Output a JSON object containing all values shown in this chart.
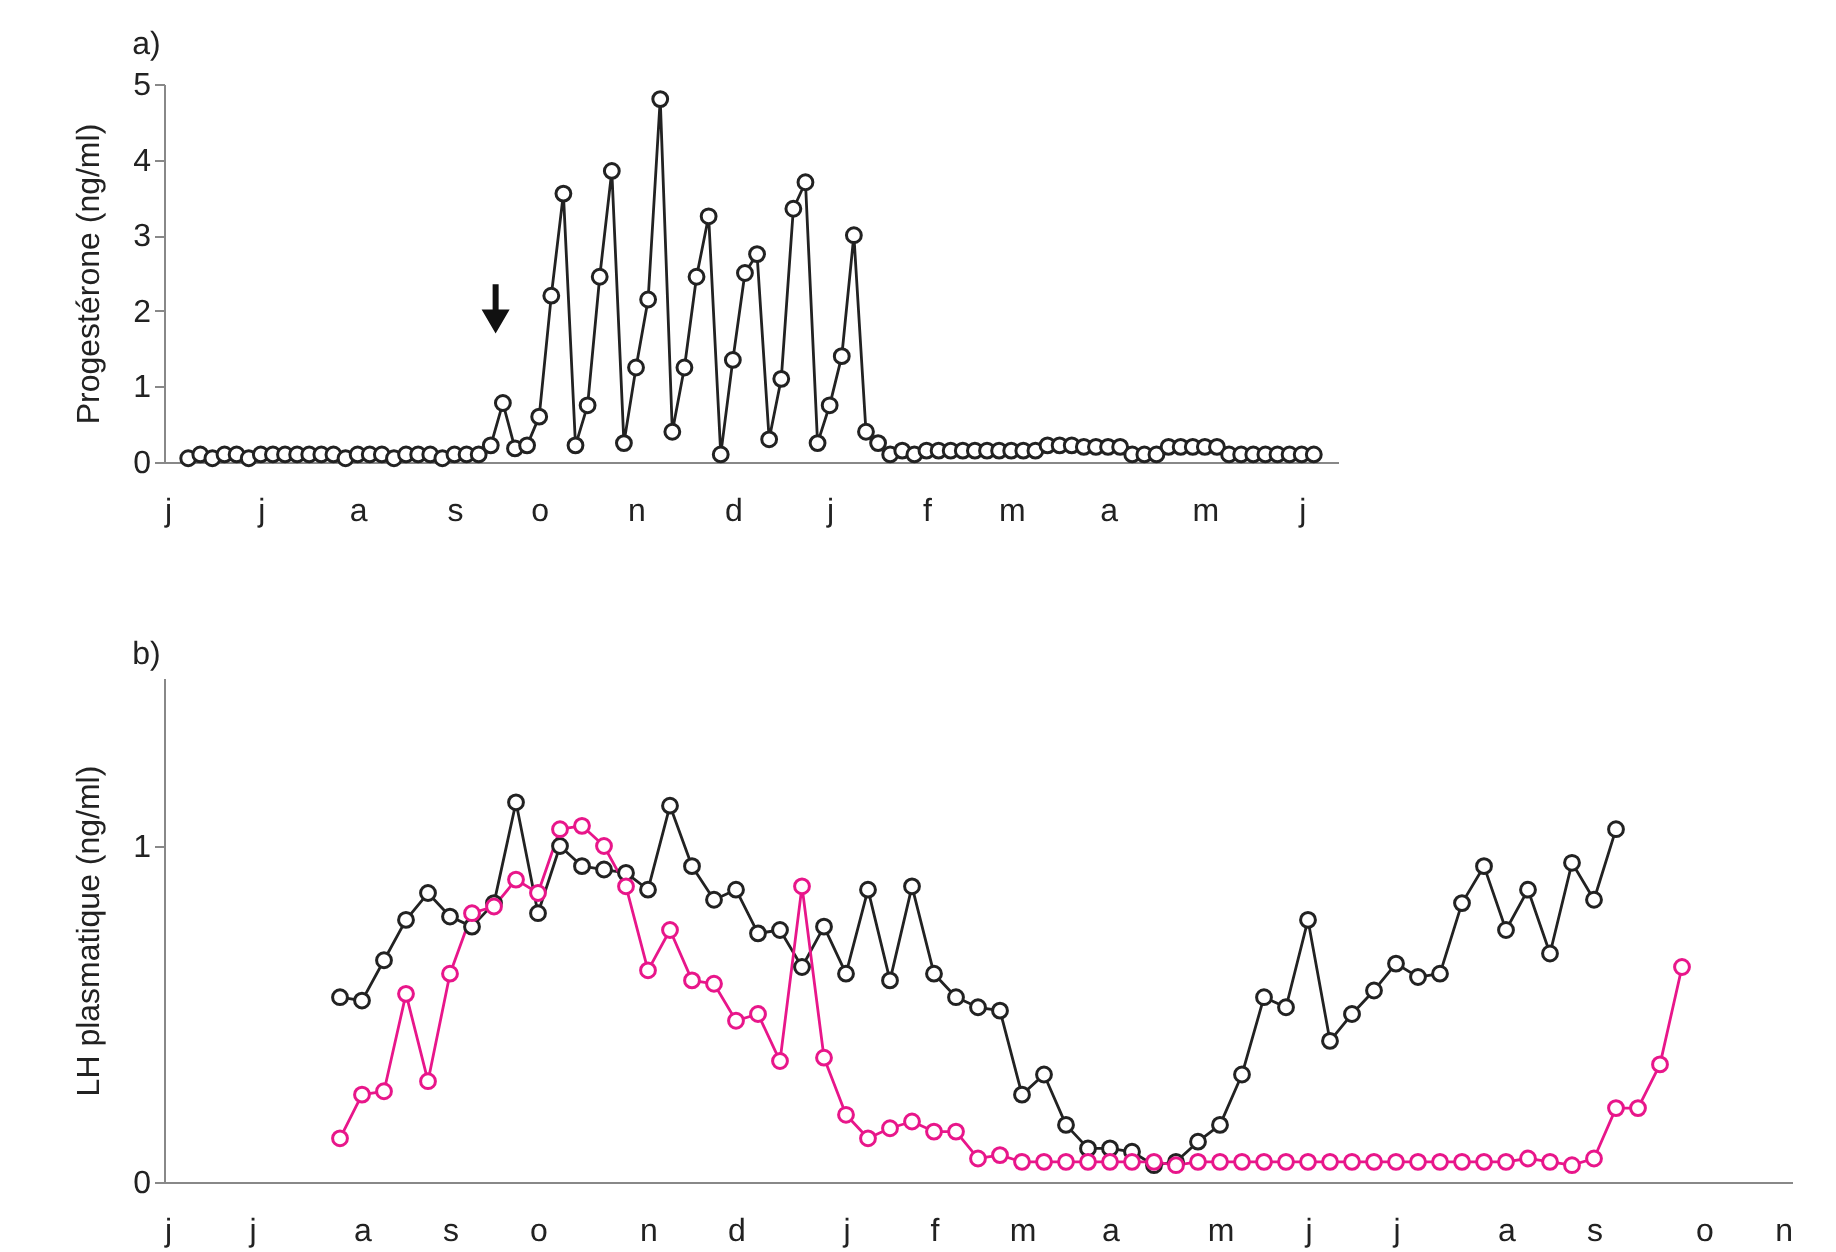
{
  "chart_data": [
    {
      "type": "line",
      "title": "a)",
      "ylabel": "Progestérone (ng/ml)",
      "marker": "circle",
      "line_style": "solid",
      "grid": false,
      "categories": [
        "j",
        null,
        null,
        null,
        null,
        null,
        null,
        null,
        "j",
        null,
        null,
        null,
        null,
        null,
        null,
        null,
        "a",
        null,
        null,
        null,
        null,
        null,
        null,
        null,
        "s",
        null,
        null,
        null,
        null,
        null,
        null,
        "o",
        null,
        null,
        null,
        null,
        null,
        null,
        null,
        "n",
        null,
        null,
        null,
        null,
        null,
        null,
        null,
        "d",
        null,
        null,
        null,
        null,
        null,
        null,
        null,
        "j",
        null,
        null,
        null,
        null,
        null,
        null,
        null,
        "f",
        null,
        null,
        null,
        null,
        null,
        null,
        "m",
        null,
        null,
        null,
        null,
        null,
        null,
        null,
        "a",
        null,
        null,
        null,
        null,
        null,
        null,
        null,
        "m",
        null,
        null,
        null,
        null,
        null,
        null,
        null,
        "j",
        null,
        null,
        null
      ],
      "ylim": [
        0,
        5
      ],
      "yticks": [
        0,
        1,
        2,
        3,
        4,
        5
      ],
      "series": [
        {
          "color": "#222222",
          "values": [
            null,
            null,
            0.05,
            0.1,
            0.05,
            0.1,
            0.1,
            0.05,
            0.1,
            0.1,
            0.1,
            0.1,
            0.1,
            0.1,
            0.1,
            0.05,
            0.1,
            0.1,
            0.1,
            0.05,
            0.1,
            0.1,
            0.1,
            0.05,
            0.1,
            0.1,
            0.1,
            0.22,
            0.78,
            0.18,
            0.22,
            0.6,
            2.2,
            3.55,
            0.22,
            0.75,
            2.45,
            3.85,
            0.25,
            1.25,
            2.15,
            4.8,
            0.4,
            1.25,
            2.45,
            3.25,
            0.1,
            1.35,
            2.5,
            2.75,
            0.3,
            1.1,
            3.35,
            3.7,
            0.25,
            0.75,
            1.4,
            3.0,
            0.4,
            0.25,
            0.1,
            0.15,
            0.1,
            0.15,
            0.15,
            0.15,
            0.15,
            0.15,
            0.15,
            0.15,
            0.15,
            0.15,
            0.15,
            0.22,
            0.22,
            0.22,
            0.2,
            0.2,
            0.2,
            0.2,
            0.1,
            0.1,
            0.1,
            0.2,
            0.2,
            0.2,
            0.2,
            0.2,
            0.1,
            0.1,
            0.1,
            0.1,
            0.1,
            0.1,
            0.1,
            0.1,
            null,
            null
          ]
        }
      ]
    },
    {
      "type": "line",
      "title": "b)",
      "ylabel": "LH plasmatique (ng/ml)",
      "marker": "circle",
      "line_style": "solid",
      "grid": false,
      "categories": [
        "j",
        null,
        null,
        null,
        "j",
        null,
        null,
        null,
        null,
        "a",
        null,
        null,
        null,
        "s",
        null,
        null,
        null,
        "o",
        null,
        null,
        null,
        null,
        "n",
        null,
        null,
        null,
        "d",
        null,
        null,
        null,
        null,
        "j",
        null,
        null,
        null,
        "f",
        null,
        null,
        null,
        "m",
        null,
        null,
        null,
        "a",
        null,
        null,
        null,
        null,
        "m",
        null,
        null,
        null,
        "j",
        null,
        null,
        null,
        "j",
        null,
        null,
        null,
        null,
        "a",
        null,
        null,
        null,
        "s",
        null,
        null,
        null,
        null,
        "o",
        null,
        null,
        null,
        "n"
      ],
      "ylim": [
        0,
        1.5
      ],
      "yticks": [
        0,
        1
      ],
      "series": [
        {
          "color": "#222222",
          "values": [
            null,
            null,
            null,
            null,
            null,
            null,
            null,
            null,
            0.55,
            0.54,
            0.66,
            0.78,
            0.86,
            0.79,
            0.76,
            0.83,
            1.13,
            0.8,
            1.0,
            0.94,
            0.93,
            0.92,
            0.87,
            1.12,
            0.94,
            0.84,
            0.87,
            0.74,
            0.75,
            0.64,
            0.76,
            0.62,
            0.87,
            0.6,
            0.88,
            0.62,
            0.55,
            0.52,
            0.51,
            0.26,
            0.32,
            0.17,
            0.1,
            0.1,
            0.09,
            0.05,
            0.06,
            0.12,
            0.17,
            0.32,
            0.55,
            0.52,
            0.78,
            0.42,
            0.5,
            0.57,
            0.65,
            0.61,
            0.62,
            0.83,
            0.94,
            0.75,
            0.87,
            0.68,
            0.95,
            0.84,
            1.05,
            null,
            null,
            null,
            null,
            null,
            null,
            null,
            null
          ]
        },
        {
          "color": "#e8168a",
          "values": [
            null,
            null,
            null,
            null,
            null,
            null,
            null,
            null,
            0.13,
            0.26,
            0.27,
            0.56,
            0.3,
            0.62,
            0.8,
            0.82,
            0.9,
            0.86,
            1.05,
            1.06,
            1.0,
            0.88,
            0.63,
            0.75,
            0.6,
            0.59,
            0.48,
            0.5,
            0.36,
            0.88,
            0.37,
            0.2,
            0.13,
            0.16,
            0.18,
            0.15,
            0.15,
            0.07,
            0.08,
            0.06,
            0.06,
            0.06,
            0.06,
            0.06,
            0.06,
            0.06,
            0.05,
            0.06,
            0.06,
            0.06,
            0.06,
            0.06,
            0.06,
            0.06,
            0.06,
            0.06,
            0.06,
            0.06,
            0.06,
            0.06,
            0.06,
            0.06,
            0.07,
            0.06,
            0.05,
            0.07,
            0.22,
            0.22,
            0.35,
            0.64,
            null,
            null,
            null,
            null,
            null
          ]
        }
      ]
    }
  ]
}
